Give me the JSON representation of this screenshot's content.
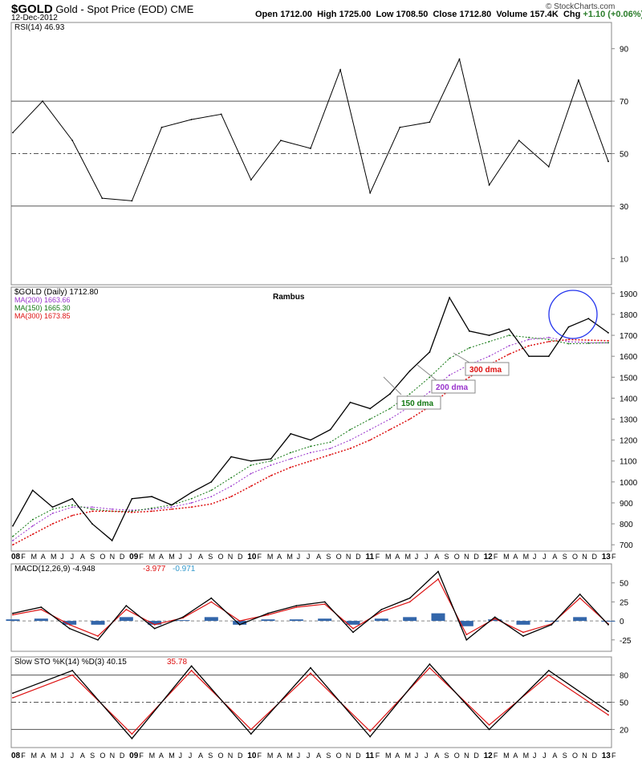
{
  "header": {
    "symbol": "$GOLD",
    "description": "Gold - Spot Price (EOD)",
    "exchange": "CME",
    "date": "12-Dec-2012",
    "open_label": "Open",
    "open": "1712.00",
    "high_label": "High",
    "high": "1725.00",
    "low_label": "Low",
    "low": "1708.50",
    "close_label": "Close",
    "close": "1712.80",
    "volume_label": "Volume",
    "volume": "157.4K",
    "chg_label": "Chg",
    "chg": "+1.10 (+0.06%)",
    "watermark": "© StockCharts.com"
  },
  "chart_data": [
    {
      "type": "line",
      "panel": "rsi",
      "title": "RSI(14) 46.93",
      "ylim": [
        0,
        100
      ],
      "yticks": [
        10,
        30,
        50,
        70,
        90
      ],
      "reference_lines": [
        30,
        50,
        70
      ],
      "x": [
        "Jan 08",
        "Apr 08",
        "Jul 08",
        "Oct 08",
        "Jan 09",
        "Apr 09",
        "Jul 09",
        "Oct 09",
        "Jan 10",
        "Apr 10",
        "Jul 10",
        "Oct 10",
        "Jan 11",
        "Apr 11",
        "Jul 11",
        "Oct 11",
        "Jan 12",
        "Apr 12",
        "Jul 12",
        "Oct 12",
        "Dec 12"
      ],
      "series": [
        {
          "values": [
            58,
            70,
            55,
            33,
            32,
            60,
            63,
            65,
            40,
            55,
            52,
            82,
            35,
            60,
            62,
            86,
            38,
            55,
            45,
            78,
            47
          ]
        }
      ]
    },
    {
      "type": "line",
      "panel": "price",
      "title": "Rambus",
      "legend": [
        {
          "name": "$GOLD (Daily) 1712.80",
          "color": "#000000"
        },
        {
          "name": "MA(200) 1663.66",
          "color": "#9933cc"
        },
        {
          "name": "MA(150) 1665.30",
          "color": "#117711"
        },
        {
          "name": "MA(300) 1673.85",
          "color": "#dd1111"
        }
      ],
      "ylim": [
        670,
        1930
      ],
      "yticks": [
        700,
        800,
        900,
        1000,
        1100,
        1200,
        1300,
        1400,
        1500,
        1600,
        1700,
        1800,
        1900
      ],
      "annotations": [
        "150 dma",
        "200 dma",
        "300 dma"
      ],
      "x": [
        "Jan 08",
        "Mar 08",
        "May 08",
        "Jul 08",
        "Sep 08",
        "Nov 08",
        "Jan 09",
        "Mar 09",
        "May 09",
        "Jul 09",
        "Sep 09",
        "Nov 09",
        "Jan 10",
        "Mar 10",
        "May 10",
        "Jul 10",
        "Sep 10",
        "Nov 10",
        "Jan 11",
        "Mar 11",
        "May 11",
        "Jul 11",
        "Sep 11",
        "Nov 11",
        "Jan 12",
        "Mar 12",
        "May 12",
        "Jul 12",
        "Sep 12",
        "Oct 12",
        "Dec 12"
      ],
      "series": [
        {
          "name": "$GOLD (Daily)",
          "values": [
            790,
            960,
            880,
            920,
            800,
            720,
            920,
            930,
            890,
            950,
            1000,
            1120,
            1100,
            1110,
            1230,
            1200,
            1250,
            1380,
            1350,
            1420,
            1530,
            1620,
            1880,
            1720,
            1700,
            1730,
            1600,
            1600,
            1740,
            1780,
            1712
          ]
        },
        {
          "name": "MA(200)",
          "values": [
            720,
            790,
            850,
            880,
            880,
            870,
            865,
            870,
            880,
            900,
            930,
            980,
            1040,
            1080,
            1110,
            1140,
            1160,
            1200,
            1250,
            1300,
            1360,
            1430,
            1510,
            1560,
            1600,
            1650,
            1680,
            1690,
            1670,
            1665,
            1664
          ]
        },
        {
          "name": "MA(150)",
          "values": [
            740,
            820,
            870,
            890,
            870,
            860,
            860,
            875,
            890,
            920,
            960,
            1020,
            1080,
            1100,
            1140,
            1170,
            1190,
            1250,
            1300,
            1350,
            1420,
            1500,
            1590,
            1640,
            1670,
            1700,
            1690,
            1680,
            1660,
            1662,
            1665
          ]
        },
        {
          "name": "MA(300)",
          "values": [
            700,
            750,
            800,
            840,
            860,
            860,
            855,
            860,
            870,
            880,
            895,
            930,
            980,
            1030,
            1070,
            1100,
            1130,
            1160,
            1200,
            1250,
            1300,
            1360,
            1440,
            1500,
            1560,
            1610,
            1650,
            1670,
            1680,
            1677,
            1674
          ]
        }
      ]
    },
    {
      "type": "line",
      "panel": "macd",
      "title": "MACD(12,26,9) -4.948, -3.977, -0.971",
      "legend": [
        {
          "name": "MACD(12,26,9) -4.948",
          "color": "#000000"
        },
        {
          "name": "-3.977",
          "color": "#dd1111"
        },
        {
          "name": "-0.971",
          "color": "#3399cc"
        }
      ],
      "ylim": [
        -40,
        75
      ],
      "yticks": [
        -25,
        0,
        25,
        50
      ],
      "x": [
        "Jan 08",
        "Apr 08",
        "Jul 08",
        "Oct 08",
        "Jan 09",
        "Apr 09",
        "Jul 09",
        "Oct 09",
        "Jan 10",
        "Apr 10",
        "Jul 10",
        "Oct 10",
        "Jan 11",
        "Apr 11",
        "Jul 11",
        "Aug 11",
        "Sep 11",
        "Jan 12",
        "Apr 12",
        "Jul 12",
        "Oct 12",
        "Dec 12"
      ],
      "series": [
        {
          "name": "MACD",
          "values": [
            10,
            18,
            -10,
            -25,
            20,
            -10,
            5,
            30,
            -5,
            10,
            20,
            25,
            -15,
            15,
            30,
            65,
            -25,
            5,
            -20,
            -5,
            35,
            -5
          ]
        },
        {
          "name": "Signal",
          "values": [
            8,
            15,
            -5,
            -20,
            15,
            -5,
            4,
            25,
            0,
            8,
            18,
            22,
            -10,
            12,
            25,
            55,
            -18,
            3,
            -15,
            -4,
            30,
            -4
          ]
        },
        {
          "name": "Histogram",
          "values": [
            2,
            3,
            -5,
            -5,
            5,
            -5,
            1,
            5,
            -5,
            2,
            2,
            3,
            -5,
            3,
            5,
            10,
            -7,
            2,
            -5,
            -1,
            5,
            -1
          ]
        }
      ]
    },
    {
      "type": "line",
      "panel": "sto",
      "title": "Slow STO %K(14) %D(3) 40.15, 35.78",
      "legend": [
        {
          "name": "Slow STO %K(14) %D(3) 40.15",
          "color": "#000000"
        },
        {
          "name": "35.78",
          "color": "#dd1111"
        }
      ],
      "ylim": [
        0,
        100
      ],
      "yticks": [
        20,
        50,
        80
      ],
      "reference_lines": [
        20,
        50,
        80
      ],
      "x": [
        "Jan 08",
        "Jun 08",
        "Dec 08",
        "Jun 09",
        "Dec 09",
        "Jun 10",
        "Dec 10",
        "Jun 11",
        "Dec 11",
        "Jun 12",
        "Dec 12"
      ],
      "series": [
        {
          "name": "%K",
          "values": [
            60,
            85,
            10,
            90,
            15,
            88,
            12,
            92,
            20,
            85,
            40
          ]
        },
        {
          "name": "%D",
          "values": [
            55,
            80,
            15,
            85,
            20,
            82,
            18,
            88,
            25,
            80,
            36
          ]
        }
      ]
    }
  ],
  "xaxis": {
    "labels": [
      "08",
      "F",
      "M",
      "A",
      "M",
      "J",
      "J",
      "A",
      "S",
      "O",
      "N",
      "D",
      "09",
      "F",
      "M",
      "A",
      "M",
      "J",
      "J",
      "A",
      "S",
      "O",
      "N",
      "D",
      "10",
      "F",
      "M",
      "A",
      "M",
      "J",
      "J",
      "A",
      "S",
      "O",
      "N",
      "D",
      "11",
      "F",
      "M",
      "A",
      "M",
      "J",
      "J",
      "A",
      "S",
      "O",
      "N",
      "D",
      "12",
      "F",
      "M",
      "A",
      "M",
      "J",
      "J",
      "A",
      "S",
      "O",
      "N",
      "D",
      "13",
      "F"
    ]
  }
}
